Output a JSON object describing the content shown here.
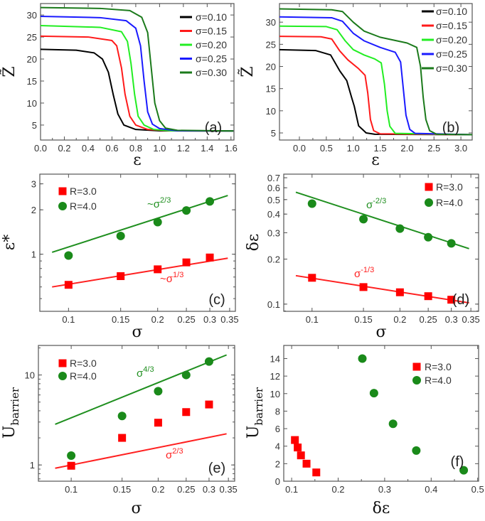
{
  "chart_data": [
    {
      "panel_id": "a",
      "type": "line",
      "panel_label": "(a)",
      "xlabel": "ε",
      "ylabel": "Z̃",
      "ylabel_sub": "",
      "xscale": "linear",
      "yscale": "linear",
      "xlim": [
        0,
        1.625
      ],
      "ylim": [
        1.6,
        32.6
      ],
      "xticks": [
        0,
        0.2,
        0.4,
        0.6,
        0.8,
        1.0,
        1.2,
        1.4,
        1.6
      ],
      "xtick_labels": [
        "0.0",
        "0.2",
        "0.4",
        "0.6",
        "0.8",
        "1.0",
        "1.2",
        "1.4",
        "1.6"
      ],
      "yticks": [
        5,
        10,
        15,
        20,
        25,
        30
      ],
      "ytick_labels": [
        "5",
        "10",
        "15",
        "20",
        "25",
        "30"
      ],
      "legend_placement": "top-right",
      "series": [
        {
          "name": "σ=0.10",
          "color": "#000000",
          "x": [
            0,
            0.3,
            0.45,
            0.52,
            0.57,
            0.61,
            0.65,
            0.7,
            0.8,
            1.0,
            1.62
          ],
          "y": [
            22.2,
            22.0,
            21.4,
            20,
            17,
            12,
            7.5,
            5,
            4,
            3.7,
            3.65
          ]
        },
        {
          "name": "σ=0.15",
          "color": "#ff1a1a",
          "x": [
            0,
            0.4,
            0.6,
            0.64,
            0.68,
            0.71,
            0.75,
            0.8,
            0.9,
            1.1,
            1.62
          ],
          "y": [
            25.2,
            25.0,
            24.2,
            23,
            18,
            12,
            7,
            5,
            4,
            3.7,
            3.65
          ]
        },
        {
          "name": "σ=0.20",
          "color": "#22ee22",
          "x": [
            0,
            0.5,
            0.68,
            0.73,
            0.76,
            0.79,
            0.82,
            0.87,
            0.95,
            1.1,
            1.62
          ],
          "y": [
            27.6,
            27.2,
            26.2,
            24,
            19,
            12,
            7,
            5,
            4,
            3.7,
            3.65
          ]
        },
        {
          "name": "σ=0.25",
          "color": "#1a1aff",
          "x": [
            0,
            0.5,
            0.72,
            0.8,
            0.84,
            0.87,
            0.9,
            0.94,
            1.0,
            1.15,
            1.62
          ],
          "y": [
            29.7,
            29.4,
            28.7,
            27,
            23,
            15,
            8,
            5.2,
            4.2,
            3.7,
            3.65
          ]
        },
        {
          "name": "σ=0.30",
          "color": "#1b7a1b",
          "x": [
            0,
            0.5,
            0.75,
            0.85,
            0.9,
            0.93,
            0.96,
            1.0,
            1.05,
            1.15,
            1.62
          ],
          "y": [
            31.7,
            31.5,
            31.0,
            29.5,
            26,
            18,
            10,
            6,
            4.3,
            3.8,
            3.65
          ]
        }
      ]
    },
    {
      "panel_id": "b",
      "type": "line",
      "panel_label": "(b)",
      "xlabel": "ε",
      "ylabel": "Z̃",
      "ylabel_sub": "",
      "xscale": "linear",
      "yscale": "linear",
      "xlim": [
        -0.37,
        3.21
      ],
      "ylim": [
        3.4,
        34.2
      ],
      "xticks": [
        0,
        0.5,
        1.0,
        1.5,
        2.0,
        2.5,
        3.0
      ],
      "xtick_labels": [
        "0.0",
        "0.5",
        "1.0",
        "1.5",
        "2.0",
        "2.5",
        "3.0"
      ],
      "yticks": [
        5,
        10,
        15,
        20,
        25,
        30
      ],
      "ytick_labels": [
        "5",
        "10",
        "15",
        "20",
        "25",
        "30"
      ],
      "legend_placement": "top-right",
      "series": [
        {
          "name": "σ=0.10",
          "color": "#000000",
          "x": [
            -0.37,
            0.3,
            0.58,
            0.75,
            0.88,
            0.97,
            1.02,
            1.1,
            1.24,
            1.4,
            3.21
          ],
          "y": [
            23.8,
            23.6,
            22.6,
            19,
            16.8,
            13,
            11,
            6.6,
            5,
            4.7,
            4.6
          ]
        },
        {
          "name": "σ=0.15",
          "color": "#ff1a1a",
          "x": [
            -0.37,
            0.4,
            0.6,
            0.75,
            0.9,
            1.1,
            1.22,
            1.27,
            1.32,
            1.38,
            1.5,
            3.21
          ],
          "y": [
            26.8,
            26.7,
            26.2,
            23.5,
            21.5,
            19.5,
            18,
            14,
            8,
            5.5,
            4.8,
            4.6
          ]
        },
        {
          "name": "σ=0.20",
          "color": "#22ee22",
          "x": [
            -0.37,
            0.5,
            0.7,
            0.85,
            1.0,
            1.2,
            1.4,
            1.52,
            1.58,
            1.63,
            1.68,
            1.78,
            3.21
          ],
          "y": [
            29.1,
            29.0,
            28.3,
            25.8,
            23.8,
            22.6,
            21.7,
            20.8,
            16,
            10,
            6.5,
            4.9,
            4.6
          ]
        },
        {
          "name": "σ=0.25",
          "color": "#1a1aff",
          "x": [
            -0.37,
            0.6,
            0.8,
            1.0,
            1.2,
            1.5,
            1.78,
            1.88,
            1.93,
            1.98,
            2.05,
            2.15,
            3.21
          ],
          "y": [
            31.2,
            31.0,
            30.2,
            27.5,
            25.8,
            24.3,
            23.2,
            21,
            15,
            9,
            5.8,
            4.9,
            4.6
          ]
        },
        {
          "name": "σ=0.30",
          "color": "#1b7a1b",
          "x": [
            -0.37,
            0.6,
            0.8,
            1.0,
            1.2,
            1.5,
            2.0,
            2.18,
            2.25,
            2.3,
            2.35,
            2.42,
            2.55,
            3.21
          ],
          "y": [
            33.0,
            32.8,
            32.4,
            30,
            28,
            26.6,
            25.3,
            24.3,
            20,
            13,
            8,
            5.5,
            4.7,
            4.6
          ]
        }
      ]
    },
    {
      "panel_id": "c",
      "type": "scatter",
      "panel_label": "(c)",
      "xlabel": "σ",
      "ylabel": "ε*",
      "ylabel_sub": "",
      "xscale": "log",
      "yscale": "log",
      "xlim": [
        0.08,
        0.366
      ],
      "ylim": [
        0.41,
        3.49
      ],
      "xticks": [
        0.1,
        0.15,
        0.2,
        0.25,
        0.3,
        0.35
      ],
      "xtick_labels": [
        "0.1",
        "0.15",
        "0.2",
        "0.25",
        "0.3",
        "0.35"
      ],
      "yticks": [
        1,
        2,
        3
      ],
      "ytick_labels": [
        "1",
        "2",
        "3"
      ],
      "legend_placement": "top-left",
      "series": [
        {
          "name": "R=3.0",
          "marker": "square",
          "color": "#ff0000",
          "x": [
            0.1,
            0.15,
            0.2,
            0.25,
            0.3
          ],
          "y": [
            0.62,
            0.71,
            0.79,
            0.88,
            0.95
          ]
        },
        {
          "name": "R=4.0",
          "marker": "circle",
          "color": "#1a8a1a",
          "x": [
            0.1,
            0.15,
            0.2,
            0.25,
            0.3
          ],
          "y": [
            0.98,
            1.33,
            1.65,
            1.98,
            2.28
          ]
        }
      ],
      "fits": [
        {
          "color": "#ff2020",
          "x": [
            0.088,
            0.345
          ],
          "y": [
            0.6,
            0.94
          ],
          "label": "~σ",
          "exponent": "1/3"
        },
        {
          "color": "#1f8f1f",
          "x": [
            0.088,
            0.345
          ],
          "y": [
            1.03,
            2.5
          ],
          "label": "~σ",
          "exponent": "2/3"
        }
      ]
    },
    {
      "panel_id": "d",
      "type": "scatter",
      "panel_label": "(d)",
      "xlabel": "σ",
      "ylabel": "δε",
      "ylabel_sub": "",
      "xscale": "log",
      "yscale": "log",
      "xlim": [
        0.08,
        0.372
      ],
      "ylim": [
        0.0895,
        0.74
      ],
      "xticks": [
        0.1,
        0.15,
        0.2,
        0.25,
        0.3,
        0.35
      ],
      "xtick_labels": [
        "0.1",
        "0.15",
        "0.2",
        "0.25",
        "0.3",
        "0.35"
      ],
      "yticks": [
        0.1,
        0.2,
        0.3,
        0.4,
        0.5,
        0.6,
        0.7
      ],
      "ytick_labels": [
        "0.1",
        "0.2",
        "0.3",
        "0.4",
        "0.5",
        "0.6",
        "0.7"
      ],
      "legend_placement": "top-right",
      "series": [
        {
          "name": "R=3.0",
          "marker": "square",
          "color": "#ff0000",
          "x": [
            0.1,
            0.15,
            0.2,
            0.25,
            0.3
          ],
          "y": [
            0.15,
            0.13,
            0.12,
            0.113,
            0.107
          ]
        },
        {
          "name": "R=4.0",
          "marker": "circle",
          "color": "#1a8a1a",
          "x": [
            0.1,
            0.15,
            0.2,
            0.25,
            0.3
          ],
          "y": [
            0.47,
            0.37,
            0.32,
            0.28,
            0.255
          ]
        }
      ],
      "fits": [
        {
          "color": "#ff2020",
          "x": [
            0.088,
            0.345
          ],
          "y": [
            0.155,
            0.102
          ],
          "label": "σ",
          "exponent": "-1/3"
        },
        {
          "color": "#1f8f1f",
          "x": [
            0.088,
            0.345
          ],
          "y": [
            0.56,
            0.235
          ],
          "label": "σ",
          "exponent": "-2/3"
        }
      ]
    },
    {
      "panel_id": "e",
      "type": "scatter",
      "panel_label": "(e)",
      "xlabel": "σ",
      "ylabel": "U",
      "ylabel_sub": "barrier",
      "xscale": "log",
      "yscale": "log",
      "xlim": [
        0.077,
        0.368
      ],
      "ylim": [
        0.66,
        21.3
      ],
      "xticks": [
        0.1,
        0.15,
        0.2,
        0.25,
        0.3,
        0.35
      ],
      "xtick_labels": [
        "0.1",
        "0.15",
        "0.2",
        "0.25",
        "0.3",
        "0.35"
      ],
      "yticks": [
        1,
        10
      ],
      "ytick_labels": [
        "1",
        "10"
      ],
      "legend_placement": "top-left",
      "series": [
        {
          "name": "R=3.0",
          "marker": "square",
          "color": "#ff0000",
          "x": [
            0.1,
            0.15,
            0.2,
            0.25,
            0.3
          ],
          "y": [
            0.98,
            2.0,
            2.95,
            3.87,
            4.7
          ]
        },
        {
          "name": "R=4.0",
          "marker": "circle",
          "color": "#1a8a1a",
          "x": [
            0.1,
            0.15,
            0.2,
            0.25,
            0.3
          ],
          "y": [
            1.27,
            3.5,
            6.6,
            10,
            14.1
          ]
        }
      ],
      "fits": [
        {
          "color": "#ff2020",
          "x": [
            0.088,
            0.345
          ],
          "y": [
            0.92,
            2.22
          ],
          "label": "σ",
          "exponent": "2/3"
        },
        {
          "color": "#1f8f1f",
          "x": [
            0.088,
            0.345
          ],
          "y": [
            2.83,
            16.7
          ],
          "label": "σ",
          "exponent": "4/3"
        }
      ]
    },
    {
      "panel_id": "f",
      "type": "scatter",
      "panel_label": "(f)",
      "xlabel": "δε",
      "ylabel": "U",
      "ylabel_sub": "barrier",
      "xscale": "linear",
      "yscale": "linear",
      "xlim": [
        0.083,
        0.502
      ],
      "ylim": [
        0,
        15.5
      ],
      "xticks": [
        0.1,
        0.2,
        0.3,
        0.4,
        0.5
      ],
      "xtick_labels": [
        "0.1",
        "0.2",
        "0.3",
        "0.4",
        "0.5"
      ],
      "yticks": [
        0,
        2,
        4,
        6,
        8,
        10,
        12,
        14
      ],
      "ytick_labels": [
        "0",
        "2",
        "4",
        "6",
        "8",
        "10",
        "12",
        "14"
      ],
      "legend_placement": "top-right",
      "series": [
        {
          "name": "R=3.0",
          "marker": "square",
          "color": "#ff0000",
          "x": [
            0.107,
            0.113,
            0.12,
            0.132,
            0.153
          ],
          "y": [
            4.7,
            3.85,
            2.95,
            2.0,
            1.0
          ]
        },
        {
          "name": "R=4.0",
          "marker": "circle",
          "color": "#1a8a1a",
          "x": [
            0.252,
            0.277,
            0.318,
            0.368,
            0.47
          ],
          "y": [
            14.0,
            10.05,
            6.55,
            3.5,
            1.25
          ]
        }
      ],
      "fits": []
    }
  ]
}
